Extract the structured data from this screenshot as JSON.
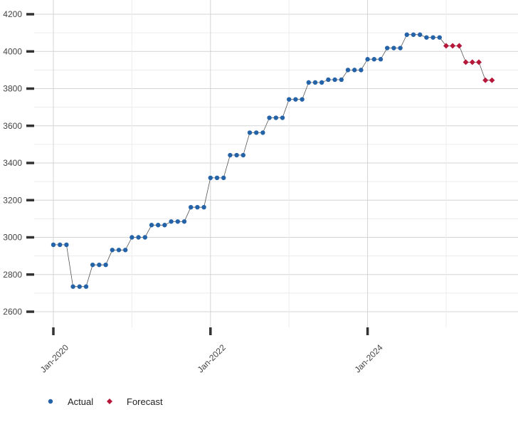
{
  "chart_data": {
    "type": "line",
    "title": "",
    "xlabel": "",
    "ylabel": "",
    "ylim": [
      2560,
      4260
    ],
    "yticks": [
      2600,
      2800,
      3000,
      3200,
      3400,
      3600,
      3800,
      4000,
      4200
    ],
    "xticks": [
      {
        "label": "Jan-2020",
        "x": 0
      },
      {
        "label": "Jan-2022",
        "x": 24
      },
      {
        "label": "Jan-2024",
        "x": 48
      }
    ],
    "grid": true,
    "legend_position": "bottom-left",
    "series": [
      {
        "name": "Actual",
        "color": "#2563a8",
        "marker": "circle",
        "x": [
          0,
          1,
          2,
          3,
          4,
          5,
          6,
          7,
          8,
          9,
          10,
          11,
          12,
          13,
          14,
          15,
          16,
          17,
          18,
          19,
          20,
          21,
          22,
          23,
          24,
          25,
          26,
          27,
          28,
          29,
          30,
          31,
          32,
          33,
          34,
          35,
          36,
          37,
          38,
          39,
          40,
          41,
          42,
          43,
          44,
          45,
          46,
          47,
          48,
          49,
          50,
          51,
          52,
          53,
          54,
          55,
          56,
          57,
          58,
          59
        ],
        "y": [
          2960,
          2960,
          2960,
          2735,
          2735,
          2735,
          2852,
          2852,
          2852,
          2932,
          2932,
          2932,
          3000,
          3000,
          3000,
          3066,
          3066,
          3066,
          3085,
          3085,
          3085,
          3162,
          3162,
          3162,
          3320,
          3320,
          3320,
          3442,
          3442,
          3442,
          3563,
          3563,
          3563,
          3643,
          3643,
          3643,
          3742,
          3742,
          3742,
          3833,
          3833,
          3833,
          3848,
          3848,
          3848,
          3900,
          3900,
          3900,
          3958,
          3958,
          3958,
          4018,
          4018,
          4018,
          4090,
          4090,
          4090,
          4075,
          4075,
          4075
        ]
      },
      {
        "name": "Forecast",
        "color": "#b5183a",
        "marker": "diamond",
        "x": [
          60,
          61,
          62,
          63,
          64,
          65,
          66,
          67
        ],
        "y": [
          4030,
          4030,
          4030,
          3942,
          3942,
          3942,
          3845,
          3845
        ]
      }
    ]
  },
  "legend": {
    "items": [
      {
        "label": "Actual",
        "color": "#2563a8"
      },
      {
        "label": "Forecast",
        "color": "#b5183a"
      }
    ]
  }
}
